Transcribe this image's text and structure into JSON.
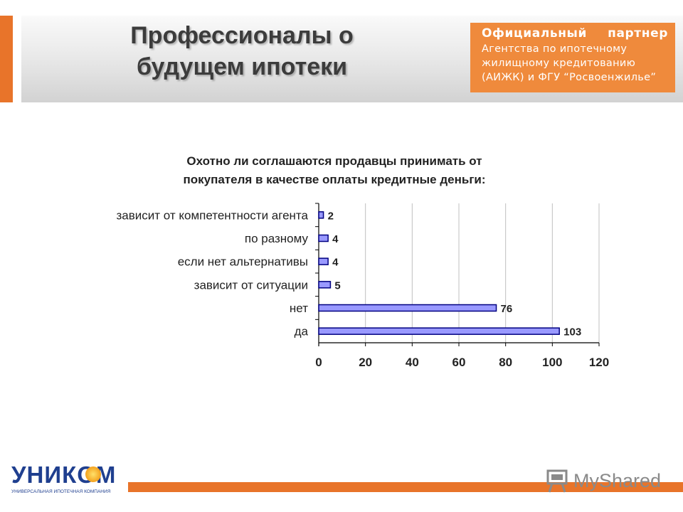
{
  "slide": {
    "title": "Профессионалы о\nбудущем ипотеки",
    "partner_heading": "Официальный партнер",
    "partner_text": "Агентства по ипотечному жилищному кредитованию (АИЖК) и ФГУ “Росвоенжилье”",
    "logo_name": "УНИКОМ",
    "logo_subtitle": "УНИВЕРСАЛЬНАЯ ИПОТЕЧНАЯ КОМПАНИЯ",
    "watermark": "MyShared",
    "accent_color": "#e8742a",
    "partner_box_color": "#ef8a3c",
    "logo_color": "#1f3f8f"
  },
  "chart_data": {
    "type": "bar",
    "orientation": "horizontal",
    "title": "Охотно ли соглашаются продавцы принимать от\nпокупателя в качестве оплаты кредитные деньги:",
    "categories": [
      "зависит от компетентности агента",
      "по разному",
      "если нет альтернативы",
      "зависит от ситуации",
      "нет",
      "да"
    ],
    "values": [
      2,
      4,
      4,
      5,
      76,
      103
    ],
    "data_labels": [
      "2",
      "4",
      "4",
      "5",
      "76",
      "103"
    ],
    "xlim": [
      0,
      120
    ],
    "x_ticks": [
      0,
      20,
      40,
      60,
      80,
      100,
      120
    ],
    "x_tick_labels": [
      "0",
      "20",
      "40",
      "60",
      "80",
      "100",
      "120"
    ],
    "grid": true,
    "legend": "none",
    "bar_color": "#9999ff",
    "bar_outline_color": "#000080"
  }
}
